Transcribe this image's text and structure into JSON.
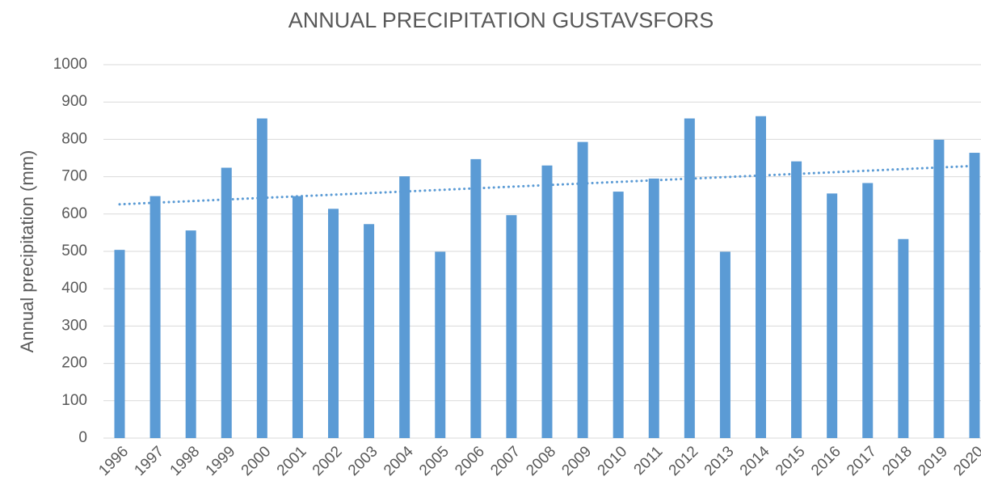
{
  "chart_data": {
    "type": "bar",
    "title": "ANNUAL PRECIPITATION GUSTAVSFORS",
    "y_label": "Annual precipitation (mm)",
    "categories": [
      "1996",
      "1997",
      "1998",
      "1999",
      "2000",
      "2001",
      "2002",
      "2003",
      "2004",
      "2005",
      "2006",
      "2007",
      "2008",
      "2009",
      "2010",
      "2011",
      "2012",
      "2013",
      "2014",
      "2015",
      "2016",
      "2017",
      "2018",
      "2019",
      "2020"
    ],
    "values": [
      504,
      648,
      556,
      724,
      856,
      648,
      614,
      573,
      701,
      499,
      747,
      597,
      730,
      793,
      660,
      695,
      856,
      499,
      862,
      741,
      655,
      683,
      533,
      799,
      764
    ],
    "color": "#5b9bd5",
    "ylim": [
      0,
      1000
    ],
    "yticks": [
      0,
      100,
      200,
      300,
      400,
      500,
      600,
      700,
      800,
      900,
      1000
    ],
    "grid": true,
    "trendline": "linear"
  }
}
